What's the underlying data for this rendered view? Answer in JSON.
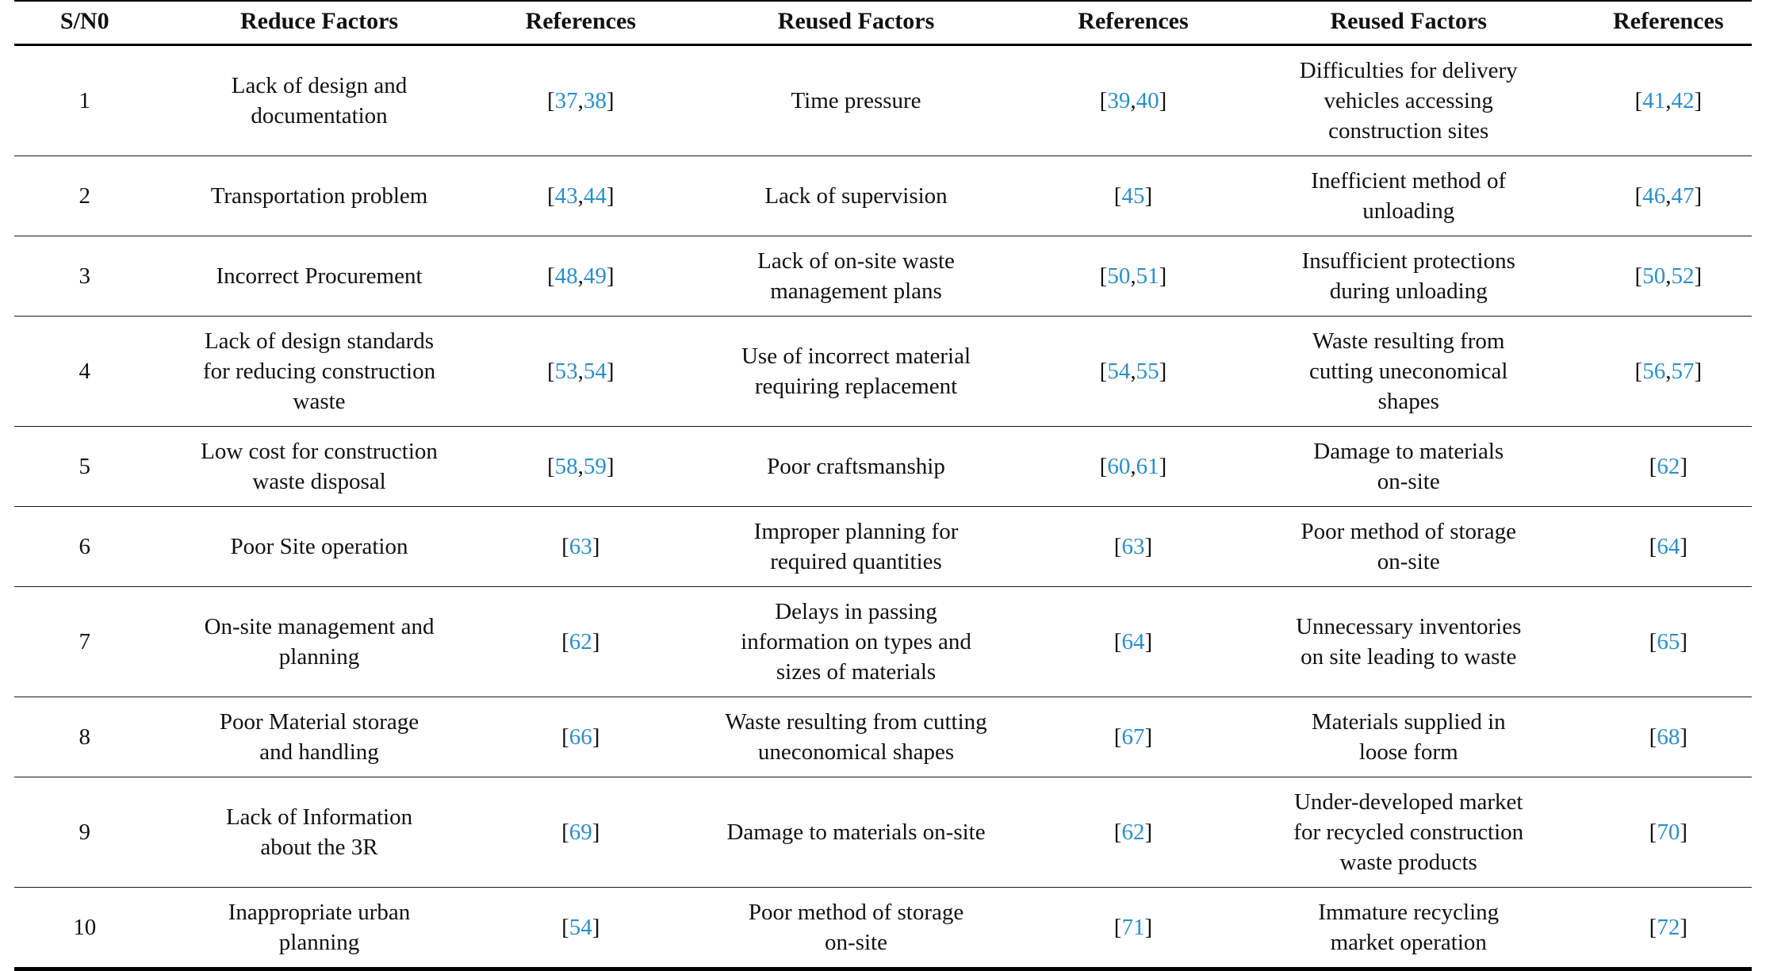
{
  "table": {
    "headers": [
      "S/N0",
      "Reduce Factors",
      "References",
      "Reused Factors",
      "References",
      "Reused Factors",
      "References"
    ],
    "column_widths_pct": [
      8.1,
      18.9,
      11.2,
      20.5,
      11.4,
      20.3,
      9.6
    ],
    "rows": [
      {
        "sn": "1",
        "reduce": "Lack of design and\ndocumentation",
        "reduce_refs": [
          "37",
          "38"
        ],
        "reused1": "Time pressure",
        "reused1_refs": [
          "39",
          "40"
        ],
        "reused2": "Difficulties for delivery\nvehicles accessing\nconstruction sites",
        "reused2_refs": [
          "41",
          "42"
        ]
      },
      {
        "sn": "2",
        "reduce": "Transportation problem",
        "reduce_refs": [
          "43",
          "44"
        ],
        "reused1": "Lack of supervision",
        "reused1_refs": [
          "45"
        ],
        "reused2": "Inefficient method of\nunloading",
        "reused2_refs": [
          "46",
          "47"
        ]
      },
      {
        "sn": "3",
        "reduce": "Incorrect Procurement",
        "reduce_refs": [
          "48",
          "49"
        ],
        "reused1": "Lack of on-site waste\nmanagement plans",
        "reused1_refs": [
          "50",
          "51"
        ],
        "reused2": "Insufficient protections\nduring unloading",
        "reused2_refs": [
          "50",
          "52"
        ]
      },
      {
        "sn": "4",
        "reduce": "Lack of design standards\nfor reducing construction\nwaste",
        "reduce_refs": [
          "53",
          "54"
        ],
        "reused1": "Use of incorrect material\nrequiring replacement",
        "reused1_refs": [
          "54",
          "55"
        ],
        "reused2": "Waste resulting from\ncutting uneconomical\nshapes",
        "reused2_refs": [
          "56",
          "57"
        ]
      },
      {
        "sn": "5",
        "reduce": "Low cost for construction\nwaste disposal",
        "reduce_refs": [
          "58",
          "59"
        ],
        "reused1": "Poor craftsmanship",
        "reused1_refs": [
          "60",
          "61"
        ],
        "reused2": "Damage to materials\non-site",
        "reused2_refs": [
          "62"
        ]
      },
      {
        "sn": "6",
        "reduce": "Poor Site operation",
        "reduce_refs": [
          "63"
        ],
        "reused1": "Improper planning for\nrequired quantities",
        "reused1_refs": [
          "63"
        ],
        "reused2": "Poor method of storage\non-site",
        "reused2_refs": [
          "64"
        ]
      },
      {
        "sn": "7",
        "reduce": "On-site management and\nplanning",
        "reduce_refs": [
          "62"
        ],
        "reused1": "Delays in passing\ninformation on types and\nsizes of materials",
        "reused1_refs": [
          "64"
        ],
        "reused2": "Unnecessary inventories\non site leading to waste",
        "reused2_refs": [
          "65"
        ]
      },
      {
        "sn": "8",
        "reduce": "Poor Material storage\nand handling",
        "reduce_refs": [
          "66"
        ],
        "reused1": "Waste resulting from cutting\nuneconomical shapes",
        "reused1_refs": [
          "67"
        ],
        "reused2": "Materials supplied in\nloose form",
        "reused2_refs": [
          "68"
        ]
      },
      {
        "sn": "9",
        "reduce": "Lack of Information\nabout the 3R",
        "reduce_refs": [
          "69"
        ],
        "reused1": "Damage to materials on-site",
        "reused1_refs": [
          "62"
        ],
        "reused2": "Under-developed market\nfor recycled construction\nwaste products",
        "reused2_refs": [
          "70"
        ]
      },
      {
        "sn": "10",
        "reduce": "Inappropriate urban\nplanning",
        "reduce_refs": [
          "54"
        ],
        "reused1": "Poor method of storage\non-site",
        "reused1_refs": [
          "71"
        ],
        "reused2": "Immature recycling\nmarket operation",
        "reused2_refs": [
          "72"
        ]
      }
    ]
  },
  "colors": {
    "reference_link": "#2b8ec9",
    "text": "#111111",
    "rule": "#000000"
  }
}
